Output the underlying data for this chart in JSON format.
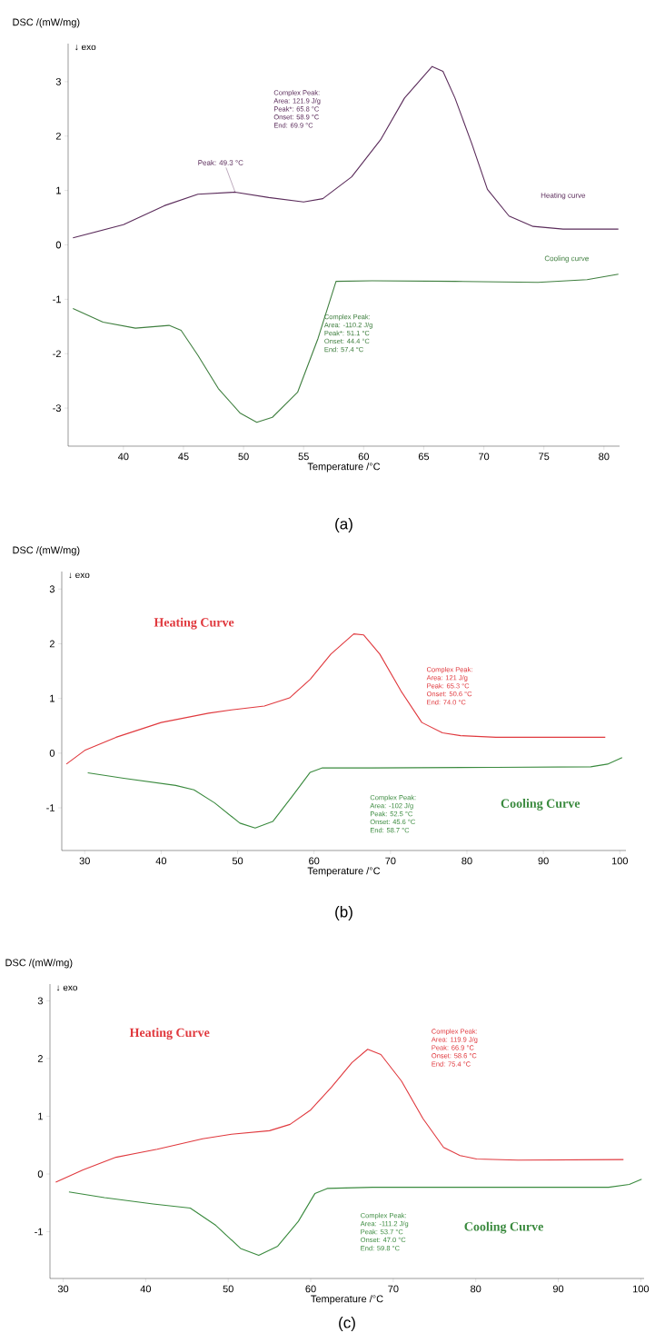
{
  "chart_data": [
    {
      "type": "line",
      "title": "(a)",
      "xlabel": "Temperature /°C",
      "ylabel": "DSC /(mW/mg)",
      "xlim": [
        35.4,
        81.3
      ],
      "ylim": [
        -3.7,
        3.7
      ],
      "xticks": [
        40,
        45,
        50,
        55,
        60,
        65,
        70,
        75,
        80
      ],
      "yticks": [
        -3,
        -2,
        -1,
        0,
        1,
        2,
        3
      ],
      "series": [
        {
          "name": "Heating curve",
          "color": "#5b2c5b",
          "x": [
            35.8,
            40,
            43.4,
            46.2,
            49.3,
            52.1,
            55,
            56.6,
            59,
            61.4,
            63.4,
            65.7,
            66.6,
            67.6,
            69,
            70.3,
            72.1,
            74.1,
            76.6,
            81.2
          ],
          "values": [
            0.13,
            0.37,
            0.72,
            0.93,
            0.97,
            0.87,
            0.79,
            0.85,
            1.25,
            1.93,
            2.7,
            3.28,
            3.19,
            2.7,
            1.86,
            1.02,
            0.53,
            0.34,
            0.29,
            0.29
          ]
        },
        {
          "name": "Cooling curve",
          "color": "#3f7f3f",
          "x": [
            35.8,
            38.3,
            41,
            43.8,
            44.8,
            46.2,
            47.9,
            49.7,
            51.1,
            52.4,
            54.5,
            56.2,
            57.7,
            60.7,
            67.6,
            74.5,
            78.6,
            81.2
          ],
          "values": [
            -1.17,
            -1.42,
            -1.53,
            -1.48,
            -1.57,
            -2.03,
            -2.64,
            -3.09,
            -3.26,
            -3.17,
            -2.71,
            -1.72,
            -0.67,
            -0.66,
            -0.67,
            -0.69,
            -0.64,
            -0.54
          ]
        }
      ],
      "annotations": [
        "↓ exo",
        {
          "text": "Peak: 49.3 °C",
          "x": 49.3,
          "y": 0.97
        },
        "Complex Peak:",
        "Area: 121.9 J/g",
        "Peak*: 65.8 °C",
        "Onset: 58.9 °C",
        "End: 69.9 °C",
        "Complex Peak:",
        "Area: -110.2 J/g",
        "Peak*: 51.1 °C",
        "Onset: 44.4 °C",
        "End: 57.4 °C"
      ]
    },
    {
      "type": "line",
      "title": "(b)",
      "xlabel": "Temperature /°C",
      "ylabel": "DSC /(mW/mg)",
      "xlim": [
        27.0,
        100.8
      ],
      "ylim": [
        -1.78,
        3.32
      ],
      "xticks": [
        30,
        40,
        50,
        60,
        70,
        80,
        90,
        100
      ],
      "yticks": [
        -1,
        0,
        1,
        2,
        3
      ],
      "series": [
        {
          "name": "Heating Curve",
          "color": "#e0393e",
          "x": [
            27.6,
            30,
            34.1,
            40,
            46.2,
            49.2,
            53.5,
            56.8,
            59.5,
            62.2,
            65.2,
            66.5,
            68.6,
            71.4,
            74.1,
            76.8,
            79.2,
            83.8,
            89.2,
            98.1
          ],
          "values": [
            -0.2,
            0.05,
            0.29,
            0.56,
            0.73,
            0.79,
            0.86,
            1.01,
            1.35,
            1.81,
            2.18,
            2.16,
            1.81,
            1.13,
            0.56,
            0.37,
            0.32,
            0.29,
            0.29,
            0.29
          ]
        },
        {
          "name": "Cooling Curve",
          "color": "#3a8a3e",
          "x": [
            30.4,
            35.1,
            41.9,
            44.3,
            47,
            50.3,
            52.3,
            54.6,
            57.3,
            59.5,
            61.1,
            67.6,
            83.8,
            96.2,
            98.4,
            100.3
          ],
          "values": [
            -0.36,
            -0.46,
            -0.59,
            -0.67,
            -0.91,
            -1.28,
            -1.37,
            -1.25,
            -0.76,
            -0.35,
            -0.27,
            -0.27,
            -0.26,
            -0.25,
            -0.2,
            -0.08
          ]
        }
      ],
      "annotations": [
        "↓ exo",
        "Complex Peak:",
        "Area: 121 J/g",
        "Peak: 65.3 °C",
        "Onset: 50.6 °C",
        "End: 74.0 °C",
        "Complex Peak:",
        "Area: -102 J/g",
        "Peak: 52.5 °C",
        "Onset: 45.6 °C",
        "End: 58.7 °C"
      ]
    },
    {
      "type": "line",
      "title": "(c)",
      "xlabel": "Temperature /°C",
      "ylabel": "DSC /(mW/mg)",
      "xlim": [
        28.4,
        100.4
      ],
      "ylim": [
        -1.81,
        3.29
      ],
      "xticks": [
        30,
        40,
        50,
        60,
        70,
        80,
        90,
        100
      ],
      "yticks": [
        -1,
        0,
        1,
        2,
        3
      ],
      "series": [
        {
          "name": "Heating Curve",
          "color": "#e0393e",
          "x": [
            29.1,
            32.4,
            36.4,
            41.4,
            46.9,
            50.4,
            55,
            57.5,
            60,
            62.5,
            65,
            66.9,
            68.5,
            71,
            73.6,
            76.1,
            78.1,
            80.1,
            85.1,
            97.9
          ],
          "values": [
            -0.14,
            0.07,
            0.29,
            0.43,
            0.61,
            0.69,
            0.75,
            0.86,
            1.11,
            1.5,
            1.93,
            2.16,
            2.07,
            1.61,
            0.96,
            0.46,
            0.32,
            0.26,
            0.24,
            0.25
          ]
        },
        {
          "name": "Cooling Curve",
          "color": "#3a8a3e",
          "x": [
            30.7,
            35,
            40.9,
            45.4,
            48.5,
            51.5,
            53.7,
            56,
            58.5,
            60.5,
            62,
            67.5,
            82.6,
            96.1,
            98.6,
            100.1
          ],
          "values": [
            -0.31,
            -0.41,
            -0.52,
            -0.59,
            -0.89,
            -1.29,
            -1.41,
            -1.25,
            -0.82,
            -0.34,
            -0.25,
            -0.23,
            -0.23,
            -0.23,
            -0.18,
            -0.09
          ]
        }
      ],
      "annotations": [
        "↓ exo",
        "Complex Peak:",
        "Area: 119.9 J/g",
        "Peak: 66.9 °C",
        "Onset: 58.6 °C",
        "End: 75.4 °C",
        "Complex Peak:",
        "Area: -111.2 J/g",
        "Peak: 53.7 °C",
        "Onset: 47.0 °C",
        "End: 59.8 °C"
      ]
    }
  ]
}
